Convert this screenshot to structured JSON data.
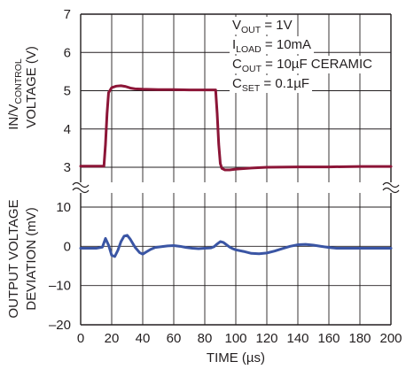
{
  "chart_data": [
    {
      "type": "line",
      "panel": "upper",
      "ylabel_main": "IN/V",
      "ylabel_sub": "CONTROL",
      "ylabel_line2": "VOLTAGE (V)",
      "ylim": [
        3,
        7
      ],
      "y_ticks": [
        "3",
        "4",
        "5",
        "6",
        "7"
      ],
      "grid": true,
      "series": [
        {
          "color": "#8c1537",
          "x": [
            0,
            15,
            16,
            17,
            18,
            20,
            23,
            26,
            29,
            32,
            35,
            40,
            50,
            60,
            70,
            80,
            87,
            88,
            89,
            90,
            91,
            93,
            96,
            100,
            110,
            120,
            140,
            160,
            180,
            200
          ],
          "y": [
            3.03,
            3.03,
            3.6,
            4.4,
            4.95,
            5.08,
            5.12,
            5.13,
            5.11,
            5.07,
            5.05,
            5.04,
            5.03,
            5.03,
            5.02,
            5.02,
            5.02,
            4.4,
            3.6,
            3.1,
            2.97,
            2.93,
            2.93,
            2.95,
            2.98,
            3.0,
            3.01,
            3.01,
            3.02,
            3.02
          ]
        }
      ],
      "annotations": [
        {
          "main": "V",
          "sub": "OUT",
          "rest": " = 1V"
        },
        {
          "main": "I",
          "sub": "LOAD",
          "rest": " = 10mA"
        },
        {
          "main": "C",
          "sub": "OUT",
          "rest": " = 10µF CERAMIC"
        },
        {
          "main": "C",
          "sub": "SET",
          "rest": " = 0.1µF"
        }
      ]
    },
    {
      "type": "line",
      "panel": "lower",
      "ylabel_line1": "OUTPUT VOLTAGE",
      "ylabel_line2": "DEVIATION (mV)",
      "ylim": [
        -20,
        10
      ],
      "y_ticks": [
        "10",
        "0",
        "–10",
        "–20"
      ],
      "xlabel": "TIME (µs)",
      "xlim": [
        0,
        200
      ],
      "x_ticks": [
        "0",
        "20",
        "40",
        "60",
        "80",
        "100",
        "120",
        "140",
        "160",
        "180",
        "200"
      ],
      "grid": true,
      "series": [
        {
          "color": "#3a55a4",
          "x": [
            0,
            10,
            14,
            16,
            18,
            20,
            22,
            24,
            26,
            28,
            30,
            32,
            35,
            38,
            40,
            42,
            45,
            48,
            52,
            56,
            60,
            64,
            68,
            72,
            76,
            80,
            84,
            86,
            88,
            90,
            92,
            94,
            96,
            98,
            100,
            105,
            110,
            115,
            120,
            125,
            130,
            135,
            140,
            145,
            150,
            155,
            160,
            165,
            170,
            180,
            190,
            200
          ],
          "y": [
            -0.5,
            -0.5,
            -0.2,
            2.0,
            0.3,
            -2.3,
            -2.6,
            -1.0,
            1.2,
            2.6,
            2.8,
            1.8,
            -0.2,
            -1.6,
            -2.0,
            -1.5,
            -0.8,
            -0.3,
            -0.1,
            0.1,
            0.2,
            0.0,
            -0.3,
            -0.5,
            -0.6,
            -0.5,
            -0.4,
            -0.1,
            0.6,
            1.2,
            1.0,
            0.4,
            -0.2,
            -0.6,
            -0.9,
            -1.3,
            -1.8,
            -1.9,
            -1.7,
            -1.2,
            -0.6,
            0.0,
            0.4,
            0.5,
            0.3,
            0.0,
            -0.3,
            -0.5,
            -0.5,
            -0.5,
            -0.5,
            -0.5
          ]
        }
      ]
    }
  ]
}
